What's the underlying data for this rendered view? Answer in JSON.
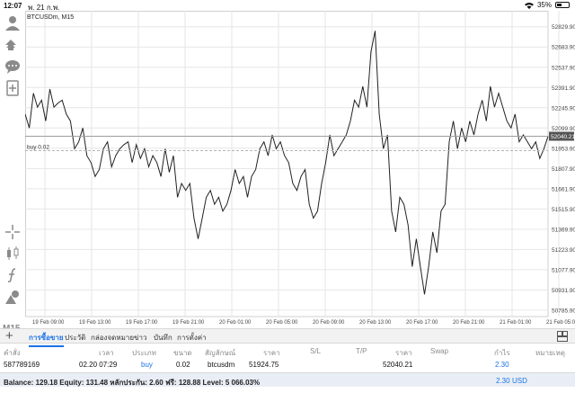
{
  "status_bar": {
    "time": "12:07",
    "date": "พ. 21 ก.พ.",
    "battery": "35%"
  },
  "chart": {
    "symbol_label": "BTCUSDm, M15",
    "timeframe": "M15",
    "order_line_label": "buy 0.02",
    "current_price": "52040.21"
  },
  "chart_data": {
    "type": "line",
    "series": [
      {
        "values": [
          52200,
          52100,
          52350,
          52250,
          52300,
          52150,
          52380,
          52250,
          52280,
          52300,
          52200,
          52150,
          51950,
          52000,
          52100,
          51900,
          51850,
          51750,
          51800,
          51950,
          52000,
          51820,
          51900,
          51950,
          51980,
          52000,
          51850,
          51980,
          51880,
          51950,
          51820,
          51900,
          51850,
          51750,
          51950,
          51780,
          51900,
          51600,
          51700,
          51650,
          51700,
          51450,
          51300,
          51450,
          51600,
          51650,
          51550,
          51600,
          51500,
          51550,
          51650,
          51800,
          51700,
          51750,
          51600,
          51750,
          51800,
          51950,
          52000,
          51900,
          52050,
          51950,
          52000,
          51900,
          51850,
          51700,
          51650,
          51750,
          51800,
          51550,
          51450,
          51500,
          51700,
          51850,
          52050,
          51900,
          51950,
          52000,
          52050,
          52150,
          52300,
          52250,
          52400,
          52250,
          52650,
          52800,
          52200,
          51950,
          52050,
          51500,
          51350,
          51600,
          51550,
          51400,
          51100,
          51300,
          51100,
          50900,
          51100,
          51350,
          51200,
          51500,
          51550,
          52000,
          52150,
          51950,
          52100,
          52000,
          52150,
          52050,
          52200,
          52300,
          52150,
          52400,
          52250,
          52350,
          52250,
          52150,
          52100,
          52200,
          52000,
          52050,
          52000,
          51950,
          52000,
          51880,
          51950,
          52040
        ]
      }
    ],
    "ylim": [
      50740,
      52880
    ],
    "y_ticks": [
      "52829.90",
      "52683.90",
      "52537.90",
      "52391.90",
      "52245.90",
      "52099.90",
      "51953.90",
      "51807.90",
      "51661.90",
      "51515.90",
      "51369.90",
      "51223.90",
      "51077.90",
      "50931.90",
      "50785.90"
    ],
    "x_ticks": [
      "19 Feb 09:00",
      "19 Feb 13:00",
      "19 Feb 17:00",
      "19 Feb 21:00",
      "20 Feb 01:00",
      "20 Feb 05:00",
      "20 Feb 09:00",
      "20 Feb 13:00",
      "20 Feb 17:00",
      "20 Feb 21:00",
      "21 Feb 01:00",
      "21 Feb 05:00"
    ],
    "order_line_price": 52040.21,
    "grid": true,
    "line_color": "#222222"
  },
  "bottom_tabs": {
    "items": [
      "การซื้อขาย",
      "ประวัติ",
      "กล่องจดหมาย",
      "ข่าว",
      "บันทึก",
      "การตั้งค่า"
    ],
    "active": "การซื้อขาย"
  },
  "table": {
    "headers": [
      "คำสั่ง",
      "เวลา",
      "ประเภท",
      "ขนาด",
      "สัญลักษณ์",
      "ราคา",
      "S/L",
      "T/P",
      "ราคา",
      "Swap",
      "กำไร",
      "หมายเหตุ"
    ],
    "rows": [
      {
        "order": "587789169",
        "time": "02.20 07:29",
        "type": "buy",
        "volume": "0.02",
        "symbol": "btcusdm",
        "open_price": "51924.75",
        "sl": "",
        "tp": "",
        "price": "52040.21",
        "swap": "",
        "profit": "2.30",
        "comment": ""
      }
    ]
  },
  "footer": {
    "balance_text": "Balance: 129.18 Equity: 131.48 หลักประกัน: 2.60 ฟรี: 128.88 Level: 5 066.03%",
    "total_profit": "2.30",
    "currency": "USD"
  },
  "colors": {
    "accent": "#1a73e8",
    "line": "#222222",
    "grid": "#e6e6e6",
    "order_line": "#9e9e9e"
  }
}
